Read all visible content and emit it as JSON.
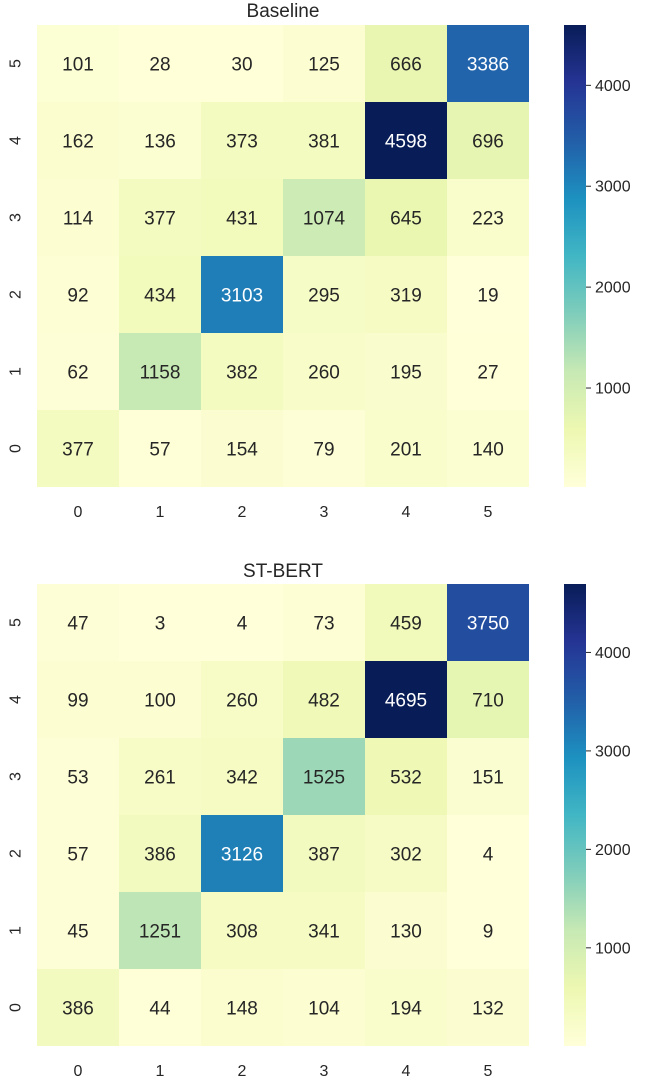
{
  "chart_data": [
    {
      "type": "heatmap",
      "title": "Baseline",
      "x_categories": [
        "0",
        "1",
        "2",
        "3",
        "4",
        "5"
      ],
      "y_categories": [
        "0",
        "1",
        "2",
        "3",
        "4",
        "5"
      ],
      "y_order": "bottom-to-top",
      "matrix_rows_top_to_bottom": [
        {
          "y": "5",
          "values": [
            101,
            28,
            30,
            125,
            666,
            3386
          ]
        },
        {
          "y": "4",
          "values": [
            162,
            136,
            373,
            381,
            4598,
            696
          ]
        },
        {
          "y": "3",
          "values": [
            114,
            377,
            431,
            1074,
            645,
            223
          ]
        },
        {
          "y": "2",
          "values": [
            92,
            434,
            3103,
            295,
            319,
            19
          ]
        },
        {
          "y": "1",
          "values": [
            62,
            1158,
            382,
            260,
            195,
            27
          ]
        },
        {
          "y": "0",
          "values": [
            377,
            57,
            154,
            79,
            201,
            140
          ]
        }
      ],
      "colorbar": {
        "colormap": "YlGnBu",
        "min": 19,
        "max": 4598,
        "ticks": [
          "1000",
          "2000",
          "3000",
          "4000"
        ],
        "tick_values": [
          1000,
          2000,
          3000,
          4000
        ]
      }
    },
    {
      "type": "heatmap",
      "title": "ST-BERT",
      "x_categories": [
        "0",
        "1",
        "2",
        "3",
        "4",
        "5"
      ],
      "y_categories": [
        "0",
        "1",
        "2",
        "3",
        "4",
        "5"
      ],
      "y_order": "bottom-to-top",
      "matrix_rows_top_to_bottom": [
        {
          "y": "5",
          "values": [
            47,
            3,
            4,
            73,
            459,
            3750
          ]
        },
        {
          "y": "4",
          "values": [
            99,
            100,
            260,
            482,
            4695,
            710
          ]
        },
        {
          "y": "3",
          "values": [
            53,
            261,
            342,
            1525,
            532,
            151
          ]
        },
        {
          "y": "2",
          "values": [
            57,
            386,
            3126,
            387,
            302,
            4
          ]
        },
        {
          "y": "1",
          "values": [
            45,
            1251,
            308,
            341,
            130,
            9
          ]
        },
        {
          "y": "0",
          "values": [
            386,
            44,
            148,
            104,
            194,
            132
          ]
        }
      ],
      "colorbar": {
        "colormap": "YlGnBu",
        "min": 3,
        "max": 4695,
        "ticks": [
          "1000",
          "2000",
          "3000",
          "4000"
        ],
        "tick_values": [
          1000,
          2000,
          3000,
          4000
        ]
      }
    }
  ]
}
